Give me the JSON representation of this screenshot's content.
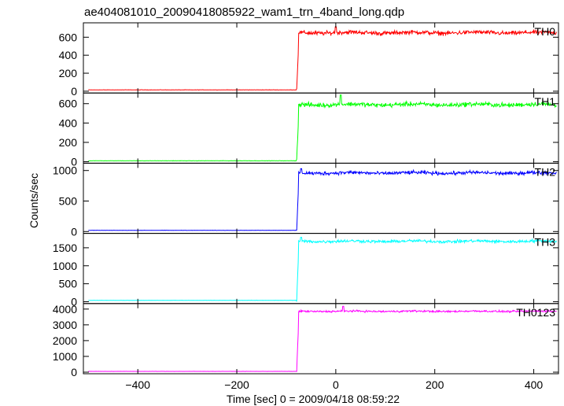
{
  "chart_data": {
    "type": "line",
    "title": "ae404081010_20090418085922_wam1_trn_4band_long.qdp",
    "xlabel": "Time [sec] 0 = 2009/04/18 08:59:22",
    "ylabel": "Counts/sec",
    "xlim": [
      -510,
      450
    ],
    "x_ticks": [
      -400,
      -200,
      0,
      200,
      400
    ],
    "trigger_time": -78,
    "grid": false,
    "panels": [
      {
        "name": "TH0",
        "color": "#ff0000",
        "ylim": [
          -20,
          760
        ],
        "y_ticks": [
          0,
          200,
          400,
          600
        ],
        "pre_level": 15,
        "post_level": 650,
        "noise": 20,
        "peak": {
          "x": 0,
          "y": 715
        }
      },
      {
        "name": "TH1",
        "color": "#00ff00",
        "ylim": [
          -15,
          710
        ],
        "y_ticks": [
          0,
          200,
          400,
          600
        ],
        "pre_level": 10,
        "post_level": 590,
        "noise": 20,
        "peak": {
          "x": 10,
          "y": 690
        }
      },
      {
        "name": "TH2",
        "color": "#0000ff",
        "ylim": [
          -30,
          1120
        ],
        "y_ticks": [
          0,
          500,
          1000
        ],
        "pre_level": 20,
        "post_level": 960,
        "noise": 25,
        "peak": {
          "x": -70,
          "y": 1030
        }
      },
      {
        "name": "TH3",
        "color": "#00ffff",
        "ylim": [
          -50,
          1900
        ],
        "y_ticks": [
          0,
          500,
          1000,
          1500
        ],
        "pre_level": 40,
        "post_level": 1680,
        "noise": 35,
        "peak": {
          "x": -70,
          "y": 1790
        }
      },
      {
        "name": "TH0123",
        "color": "#ff00ff",
        "ylim": [
          -100,
          4350
        ],
        "y_ticks": [
          0,
          1000,
          2000,
          3000,
          4000
        ],
        "pre_level": 50,
        "post_level": 3860,
        "noise": 50,
        "peak": {
          "x": 15,
          "y": 4180
        }
      }
    ]
  }
}
